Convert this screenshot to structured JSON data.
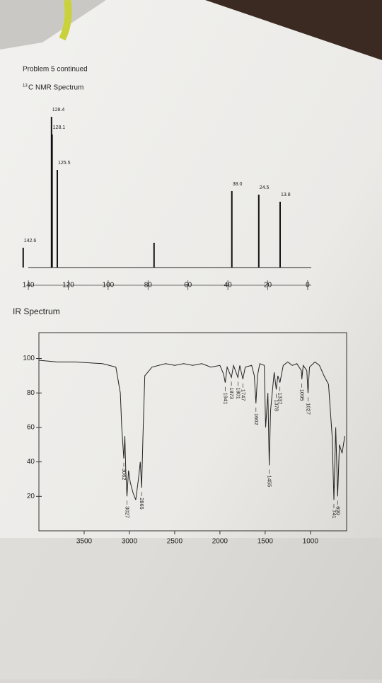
{
  "heading": "Problem 5 continued",
  "chart_data": [
    {
      "type": "stick",
      "title_superscript": "13",
      "title": "C NMR Spectrum",
      "x": [
        142.6,
        128.4,
        128.1,
        125.5,
        77,
        38.0,
        24.5,
        13.8
      ],
      "values": [
        28,
        213,
        188,
        138,
        35,
        108,
        103,
        93
      ],
      "peak_labels": [
        "142.6",
        "128.4",
        "128.1",
        "125.5",
        null,
        "38.0",
        "24.5",
        "13.8"
      ],
      "xlim": [
        145,
        -5
      ],
      "xticks": [
        140,
        120,
        100,
        80,
        60,
        40,
        20,
        0
      ],
      "color": "#111111"
    },
    {
      "type": "line",
      "title": "IR Spectrum",
      "color": "#222222",
      "x": [
        4000,
        3800,
        3600,
        3300,
        3150,
        3100,
        3085,
        3062,
        3050,
        3040,
        3027,
        3010,
        2990,
        2960,
        2930,
        2900,
        2880,
        2865,
        2850,
        2830,
        2750,
        2600,
        2500,
        2400,
        2300,
        2200,
        2100,
        2000,
        1960,
        1941,
        1920,
        1873,
        1850,
        1801,
        1780,
        1747,
        1720,
        1650,
        1620,
        1602,
        1585,
        1560,
        1510,
        1495,
        1470,
        1455,
        1440,
        1400,
        1378,
        1360,
        1337,
        1300,
        1250,
        1200,
        1150,
        1100,
        1095,
        1080,
        1040,
        1027,
        1010,
        950,
        900,
        850,
        800,
        760,
        741,
        720,
        699,
        680,
        650,
        620
      ],
      "values": [
        99,
        98,
        98,
        97,
        95,
        80,
        60,
        42,
        55,
        35,
        20,
        35,
        28,
        22,
        18,
        30,
        40,
        25,
        55,
        90,
        95,
        97,
        96,
        97,
        96,
        97,
        95,
        96,
        91,
        86,
        95,
        89,
        96,
        89,
        96,
        88,
        95,
        96,
        90,
        74,
        90,
        97,
        96,
        60,
        80,
        38,
        70,
        92,
        82,
        90,
        86,
        96,
        98,
        96,
        97,
        93,
        88,
        96,
        93,
        80,
        95,
        98,
        96,
        90,
        85,
        55,
        18,
        60,
        20,
        50,
        45,
        55
      ],
      "peak_labels": [
        3062,
        3027,
        2865,
        1941,
        1873,
        1801,
        1747,
        1602,
        1455,
        1378,
        1337,
        1095,
        1027,
        741,
        699
      ],
      "xlim": [
        4000,
        600
      ],
      "ylim": [
        0,
        115
      ],
      "xticks": [
        3500,
        3000,
        2500,
        2000,
        1500,
        1000
      ],
      "yticks": [
        100,
        80,
        60,
        40,
        20
      ]
    }
  ]
}
